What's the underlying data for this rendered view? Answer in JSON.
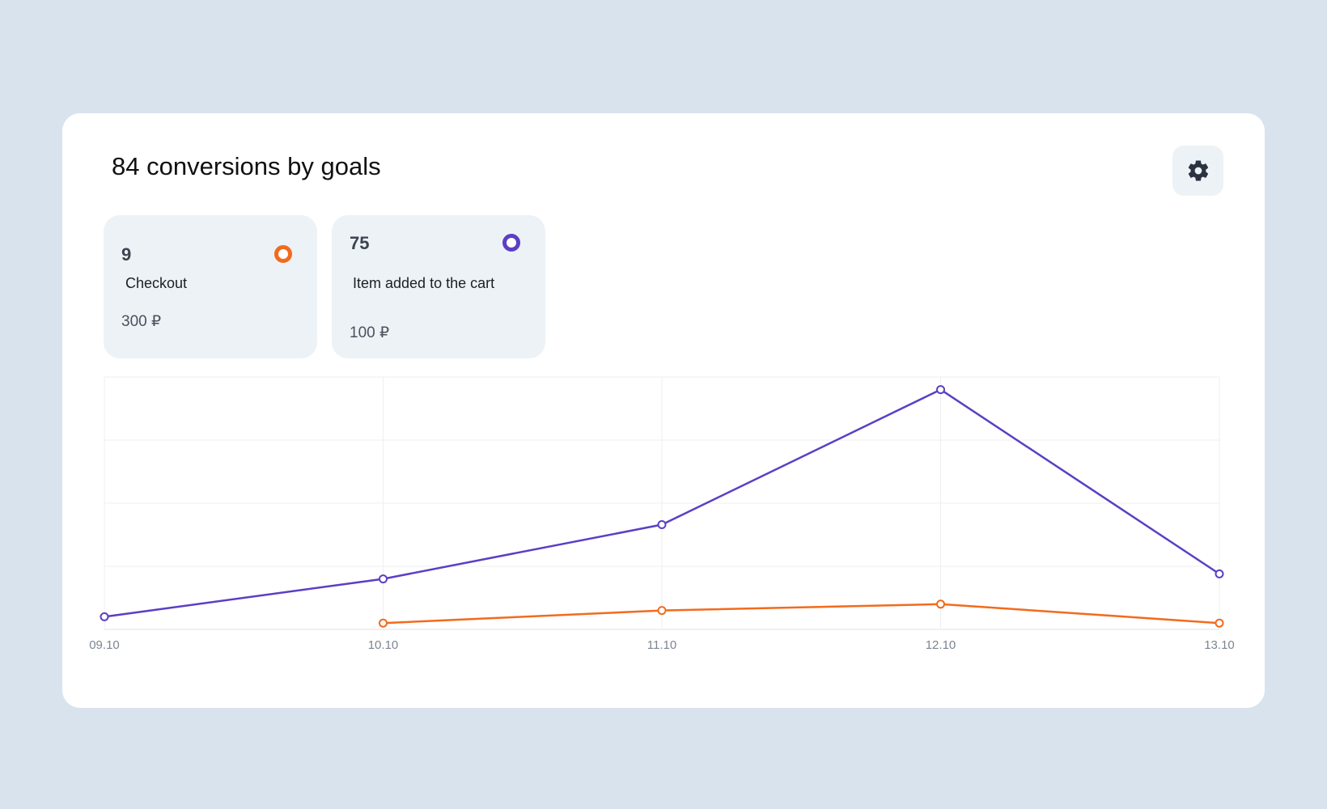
{
  "header": {
    "title": "84 conversions by goals",
    "settings_icon": "gear-icon"
  },
  "goals": [
    {
      "count": "9",
      "name": "Checkout",
      "price": "300 ₽",
      "color": "#f26b1d"
    },
    {
      "count": "75",
      "name": "Item added to the cart",
      "price": "100 ₽",
      "color": "#5b3fc4"
    }
  ],
  "chart_data": {
    "type": "line",
    "categories": [
      "09.10",
      "10.10",
      "11.10",
      "12.10",
      "13.10"
    ],
    "ylim": [
      0,
      20
    ],
    "grid": true,
    "series": [
      {
        "name": "Item added to the cart",
        "color": "#5b3fc4",
        "values": [
          1,
          4,
          8.3,
          19,
          4.4
        ]
      },
      {
        "name": "Checkout",
        "color": "#f26b1d",
        "values": [
          null,
          0.5,
          1.5,
          2,
          0.5
        ]
      }
    ]
  }
}
